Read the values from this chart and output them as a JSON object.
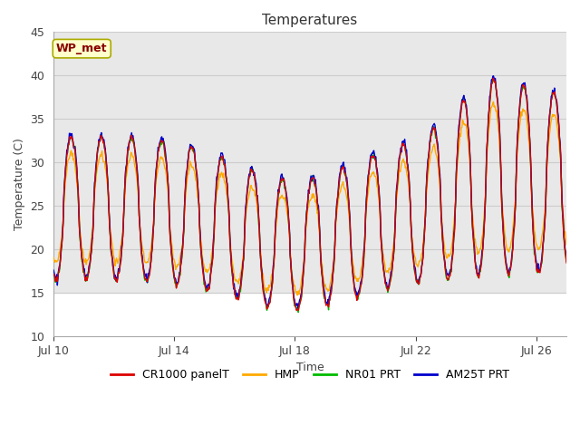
{
  "title": "Temperatures",
  "xlabel": "Time",
  "ylabel": "Temperature (C)",
  "ylim": [
    10,
    45
  ],
  "series_colors": {
    "CR1000 panelT": "#dd0000",
    "HMP": "#ffaa00",
    "NR01 PRT": "#00bb00",
    "AM25T PRT": "#0000cc"
  },
  "background_color": "#ffffff",
  "plot_bg_color": "#ffffff",
  "grid_color": "#cccccc",
  "annotation_text": "WP_met",
  "annotation_bg": "#ffffcc",
  "annotation_border": "#aaaa00",
  "annotation_text_color": "#880000",
  "x_tick_labels": [
    "Jul 10",
    "Jul 14",
    "Jul 18",
    "Jul 22",
    "Jul 26"
  ],
  "x_tick_positions": [
    0,
    4,
    8,
    12,
    16
  ],
  "y_ticks": [
    10,
    15,
    20,
    25,
    30,
    35,
    40,
    45
  ],
  "shaded_band_low": [
    15,
    37
  ],
  "shaded_band_high": [
    37,
    45
  ],
  "line_width": 1.0
}
